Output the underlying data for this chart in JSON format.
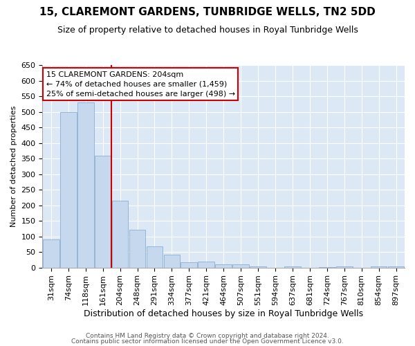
{
  "title": "15, CLAREMONT GARDENS, TUNBRIDGE WELLS, TN2 5DD",
  "subtitle": "Size of property relative to detached houses in Royal Tunbridge Wells",
  "xlabel": "Distribution of detached houses by size in Royal Tunbridge Wells",
  "ylabel": "Number of detached properties",
  "categories": [
    "31sqm",
    "74sqm",
    "118sqm",
    "161sqm",
    "204sqm",
    "248sqm",
    "291sqm",
    "334sqm",
    "377sqm",
    "421sqm",
    "464sqm",
    "507sqm",
    "551sqm",
    "594sqm",
    "637sqm",
    "681sqm",
    "724sqm",
    "767sqm",
    "810sqm",
    "854sqm",
    "897sqm"
  ],
  "values": [
    90,
    500,
    530,
    360,
    215,
    122,
    68,
    42,
    17,
    20,
    10,
    11,
    4,
    0,
    4,
    0,
    1,
    4,
    0,
    4,
    3
  ],
  "bar_color": "#c5d8ee",
  "bar_edge_color": "#8ab0d0",
  "highlight_line_index": 4,
  "highlight_line_color": "#cc0000",
  "annotation_text": "15 CLAREMONT GARDENS: 204sqm\n← 74% of detached houses are smaller (1,459)\n25% of semi-detached houses are larger (498) →",
  "annotation_box_facecolor": "#ffffff",
  "annotation_box_edgecolor": "#cc0000",
  "ylim": [
    0,
    650
  ],
  "yticks": [
    0,
    50,
    100,
    150,
    200,
    250,
    300,
    350,
    400,
    450,
    500,
    550,
    600,
    650
  ],
  "plot_bg_color": "#dce8f5",
  "fig_bg_color": "#ffffff",
  "footer_line1": "Contains HM Land Registry data © Crown copyright and database right 2024.",
  "footer_line2": "Contains public sector information licensed under the Open Government Licence v3.0.",
  "title_fontsize": 11,
  "subtitle_fontsize": 9,
  "xlabel_fontsize": 9,
  "ylabel_fontsize": 8,
  "tick_fontsize": 8,
  "annotation_fontsize": 8,
  "footer_fontsize": 6.5
}
